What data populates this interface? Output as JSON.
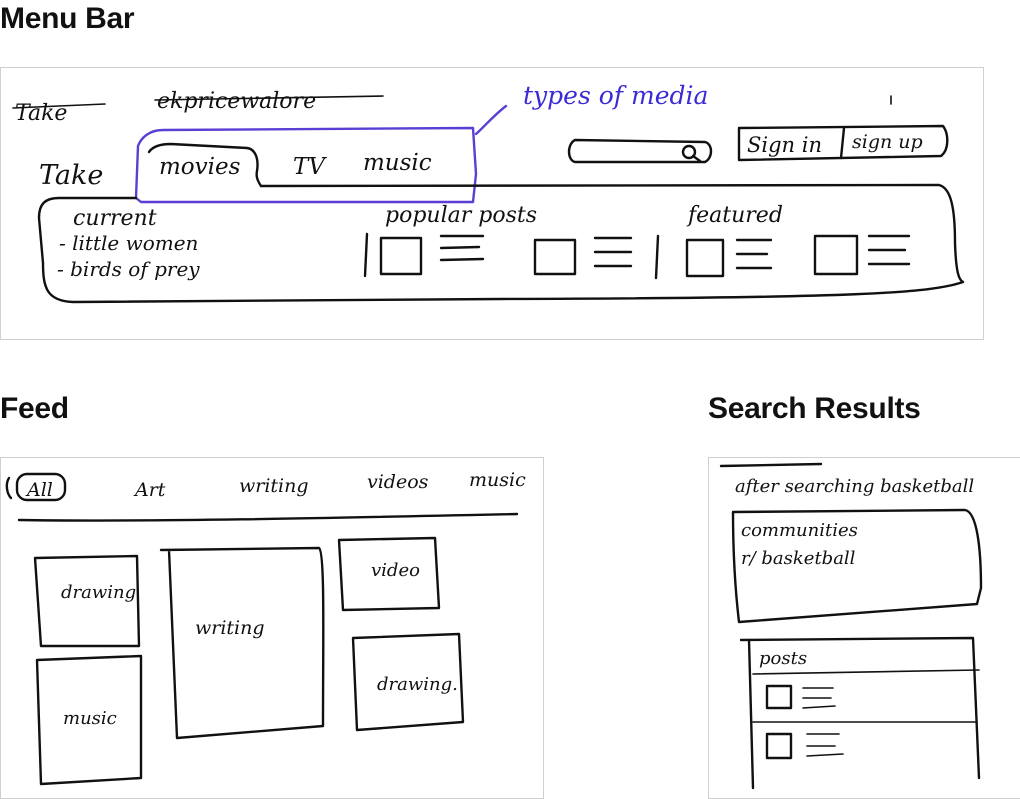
{
  "sections": {
    "menu_bar": "Menu Bar",
    "feed": "Feed",
    "search_results": "Search Results"
  },
  "menu_bar": {
    "logo": "Take",
    "scribble": "ekpricewalore",
    "tabs": [
      "movies",
      "TV",
      "music"
    ],
    "annotation": "types of media",
    "sign_in": "Sign in",
    "sign_up": "sign up",
    "current_heading": "current",
    "current_items": [
      "- little women",
      "- birds of prey"
    ],
    "popular_posts": "popular posts",
    "featured": "featured"
  },
  "feed": {
    "tabs": [
      "All",
      "Art",
      "writing",
      "videos",
      "music"
    ],
    "cards": [
      "drawing",
      "writing",
      "video",
      "music",
      "drawing."
    ]
  },
  "search": {
    "header": "after searching basketball",
    "communities_heading": "communities",
    "community_item": "r/ basketball",
    "posts_heading": "posts"
  }
}
